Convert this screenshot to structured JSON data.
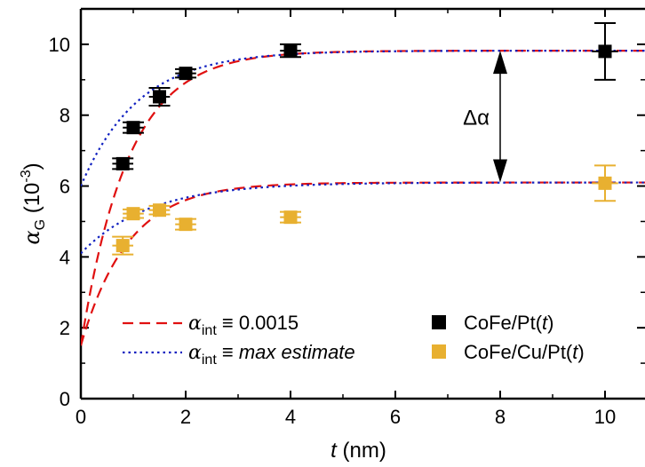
{
  "chart_data": {
    "type": "scatter",
    "xlabel": {
      "var": "t",
      "unit": " (nm)"
    },
    "ylabel": {
      "var": "α",
      "sub": "G",
      "unit": " (10",
      "exp": "-3",
      "close": ")"
    },
    "xlim": [
      0,
      11
    ],
    "ylim": [
      0,
      11
    ],
    "xticks": [
      0,
      2,
      4,
      6,
      8,
      10
    ],
    "yticks": [
      0,
      2,
      4,
      6,
      8,
      10
    ],
    "grid": false,
    "series": [
      {
        "name": "CoFe/Pt(t)",
        "name_plain": "CoFe/Pt(",
        "name_var": "t",
        "name_end": ")",
        "color": "#000000",
        "marker": "square",
        "points": [
          {
            "x": 0.8,
            "y": 6.63,
            "xerr": 0.2,
            "yerr": 0.15
          },
          {
            "x": 1.0,
            "y": 7.65,
            "xerr": 0.2,
            "yerr": 0.15
          },
          {
            "x": 1.5,
            "y": 8.52,
            "xerr": 0.2,
            "yerr": 0.25
          },
          {
            "x": 2.0,
            "y": 9.18,
            "xerr": 0.2,
            "yerr": 0.12
          },
          {
            "x": 4.0,
            "y": 9.82,
            "xerr": 0.2,
            "yerr": 0.18
          },
          {
            "x": 10.0,
            "y": 9.8,
            "xerr": 0.25,
            "yerr": 0.8
          }
        ]
      },
      {
        "name": "CoFe/Cu/Pt(t)",
        "name_plain": "CoFe/Cu/Pt(",
        "name_var": "t",
        "name_end": ")",
        "color": "#E8B030",
        "marker": "square",
        "points": [
          {
            "x": 0.8,
            "y": 4.32,
            "xerr": 0.2,
            "yerr": 0.25
          },
          {
            "x": 1.0,
            "y": 5.22,
            "xerr": 0.2,
            "yerr": 0.12
          },
          {
            "x": 1.5,
            "y": 5.32,
            "xerr": 0.2,
            "yerr": 0.12
          },
          {
            "x": 2.0,
            "y": 4.92,
            "xerr": 0.2,
            "yerr": 0.15
          },
          {
            "x": 4.0,
            "y": 5.12,
            "xerr": 0.2,
            "yerr": 0.15
          },
          {
            "x": 10.0,
            "y": 6.08,
            "xerr": 0.25,
            "yerr": 0.5
          }
        ]
      }
    ],
    "fits": [
      {
        "name": "α_int ≡ 0.0015",
        "color": "#E01010",
        "dash": "dashed",
        "y0": 1.5,
        "yinf": 9.82,
        "lambda": 0.9
      },
      {
        "name": "α_int ≡ max estimate",
        "color": "#1020C0",
        "dash": "dotted",
        "y0": 6.0,
        "yinf": 9.82,
        "lambda": 1.1
      },
      {
        "name": "α_int ≡ 0.0015",
        "color": "#E01010",
        "dash": "dashed",
        "y0": 1.5,
        "yinf": 6.1,
        "lambda": 0.9
      },
      {
        "name": "α_int ≡ max estimate",
        "color": "#1020C0",
        "dash": "dotted",
        "y0": 4.1,
        "yinf": 6.1,
        "lambda": 1.3
      }
    ],
    "fit_legend": [
      {
        "color": "#E01010",
        "dash": "dashed",
        "var": "α",
        "sub": "int",
        "rel": " ≡ ",
        "value": "0.0015",
        "italic": false
      },
      {
        "color": "#1020C0",
        "dash": "dotted",
        "var": "α",
        "sub": "int",
        "rel": " ≡ ",
        "value": "max estimate",
        "italic": true
      }
    ],
    "annotation": {
      "text": "Δα",
      "x": 8.0,
      "y_top": 9.82,
      "y_bottom": 6.1
    },
    "legend_position": "bottom"
  }
}
